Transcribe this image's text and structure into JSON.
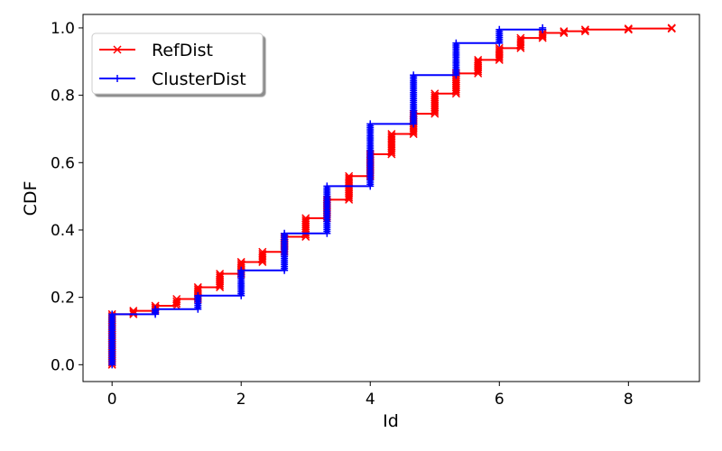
{
  "chart_data": {
    "type": "line",
    "subtype": "step-cdf",
    "xlabel": "Id",
    "ylabel": "CDF",
    "xlim": [
      -0.45,
      9.1
    ],
    "ylim": [
      -0.05,
      1.04
    ],
    "xticks": [
      0,
      2,
      4,
      6,
      8
    ],
    "yticks": [
      0.0,
      0.2,
      0.4,
      0.6,
      0.8,
      1.0
    ],
    "xtick_labels": [
      "0",
      "2",
      "4",
      "6",
      "8"
    ],
    "ytick_labels": [
      "0.0",
      "0.2",
      "0.4",
      "0.6",
      "0.8",
      "1.0"
    ],
    "grid": false,
    "legend": {
      "position": "top-left",
      "frame": true,
      "shadow": true
    },
    "series": [
      {
        "name": "RefDist",
        "color": "#ff0000",
        "marker": "x",
        "steps": [
          {
            "x": 0.0,
            "y0": 0.0,
            "y1": 0.15
          },
          {
            "x": 0.33,
            "y0": 0.15,
            "y1": 0.16
          },
          {
            "x": 0.67,
            "y0": 0.16,
            "y1": 0.175
          },
          {
            "x": 1.0,
            "y0": 0.175,
            "y1": 0.195
          },
          {
            "x": 1.33,
            "y0": 0.195,
            "y1": 0.23
          },
          {
            "x": 1.67,
            "y0": 0.23,
            "y1": 0.27
          },
          {
            "x": 2.0,
            "y0": 0.27,
            "y1": 0.305
          },
          {
            "x": 2.33,
            "y0": 0.305,
            "y1": 0.335
          },
          {
            "x": 2.67,
            "y0": 0.335,
            "y1": 0.38
          },
          {
            "x": 3.0,
            "y0": 0.38,
            "y1": 0.435
          },
          {
            "x": 3.33,
            "y0": 0.435,
            "y1": 0.49
          },
          {
            "x": 3.67,
            "y0": 0.49,
            "y1": 0.56
          },
          {
            "x": 4.0,
            "y0": 0.56,
            "y1": 0.625
          },
          {
            "x": 4.33,
            "y0": 0.625,
            "y1": 0.685
          },
          {
            "x": 4.67,
            "y0": 0.685,
            "y1": 0.745
          },
          {
            "x": 5.0,
            "y0": 0.745,
            "y1": 0.805
          },
          {
            "x": 5.33,
            "y0": 0.805,
            "y1": 0.865
          },
          {
            "x": 5.67,
            "y0": 0.865,
            "y1": 0.905
          },
          {
            "x": 6.0,
            "y0": 0.905,
            "y1": 0.94
          },
          {
            "x": 6.33,
            "y0": 0.94,
            "y1": 0.97
          },
          {
            "x": 6.67,
            "y0": 0.97,
            "y1": 0.985
          },
          {
            "x": 7.0,
            "y0": 0.985,
            "y1": 0.99
          },
          {
            "x": 7.33,
            "y0": 0.99,
            "y1": 0.995
          },
          {
            "x": 8.0,
            "y0": 0.995,
            "y1": 0.998
          },
          {
            "x": 8.67,
            "y0": 0.998,
            "y1": 1.0
          }
        ]
      },
      {
        "name": "ClusterDist",
        "color": "#0000ff",
        "marker": "+",
        "steps": [
          {
            "x": 0.0,
            "y0": 0.0,
            "y1": 0.15
          },
          {
            "x": 0.67,
            "y0": 0.15,
            "y1": 0.165
          },
          {
            "x": 1.33,
            "y0": 0.165,
            "y1": 0.205
          },
          {
            "x": 2.0,
            "y0": 0.205,
            "y1": 0.28
          },
          {
            "x": 2.67,
            "y0": 0.28,
            "y1": 0.39
          },
          {
            "x": 3.33,
            "y0": 0.39,
            "y1": 0.53
          },
          {
            "x": 4.0,
            "y0": 0.53,
            "y1": 0.715
          },
          {
            "x": 4.67,
            "y0": 0.715,
            "y1": 0.86
          },
          {
            "x": 5.33,
            "y0": 0.86,
            "y1": 0.955
          },
          {
            "x": 6.0,
            "y0": 0.955,
            "y1": 0.995
          },
          {
            "x": 6.67,
            "y0": 0.995,
            "y1": 1.0
          }
        ]
      }
    ]
  }
}
